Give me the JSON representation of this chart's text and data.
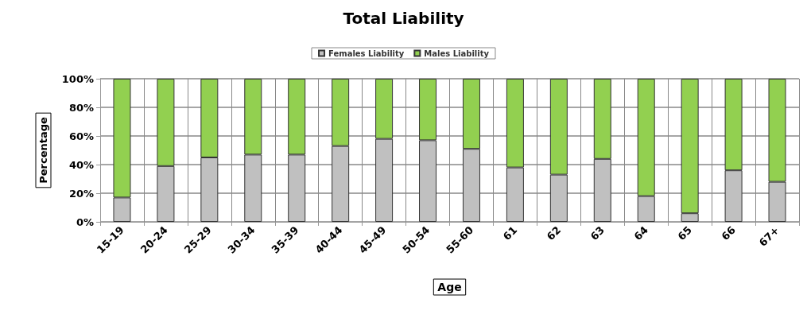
{
  "chart_data": {
    "type": "bar",
    "title": "Total Liability",
    "xlabel": "Age",
    "ylabel": "Percentage",
    "categories": [
      "15-19",
      "20-24",
      "25-29",
      "30-34",
      "35-39",
      "40-44",
      "45-49",
      "50-54",
      "55-60",
      "61",
      "62",
      "63",
      "64",
      "65",
      "66",
      "67+"
    ],
    "series": [
      {
        "name": "Females Liability",
        "color": "#c0c0c0",
        "values": [
          17,
          39,
          45,
          47,
          47,
          53,
          58,
          57,
          51,
          38,
          33,
          44,
          18,
          6,
          36,
          28
        ]
      },
      {
        "name": "Males Liability",
        "color": "#92d050",
        "values": [
          83,
          61,
          55,
          53,
          53,
          47,
          42,
          43,
          49,
          62,
          67,
          56,
          82,
          94,
          64,
          72
        ]
      }
    ],
    "stacked": true,
    "ylim": [
      0,
      100
    ],
    "yticks": [
      {
        "value": 0,
        "label": "0%"
      },
      {
        "value": 20,
        "label": "20%"
      },
      {
        "value": 40,
        "label": "40%"
      },
      {
        "value": 60,
        "label": "60%"
      },
      {
        "value": 80,
        "label": "80%"
      },
      {
        "value": 100,
        "label": "100%"
      }
    ],
    "grid": true,
    "legend": "top"
  }
}
